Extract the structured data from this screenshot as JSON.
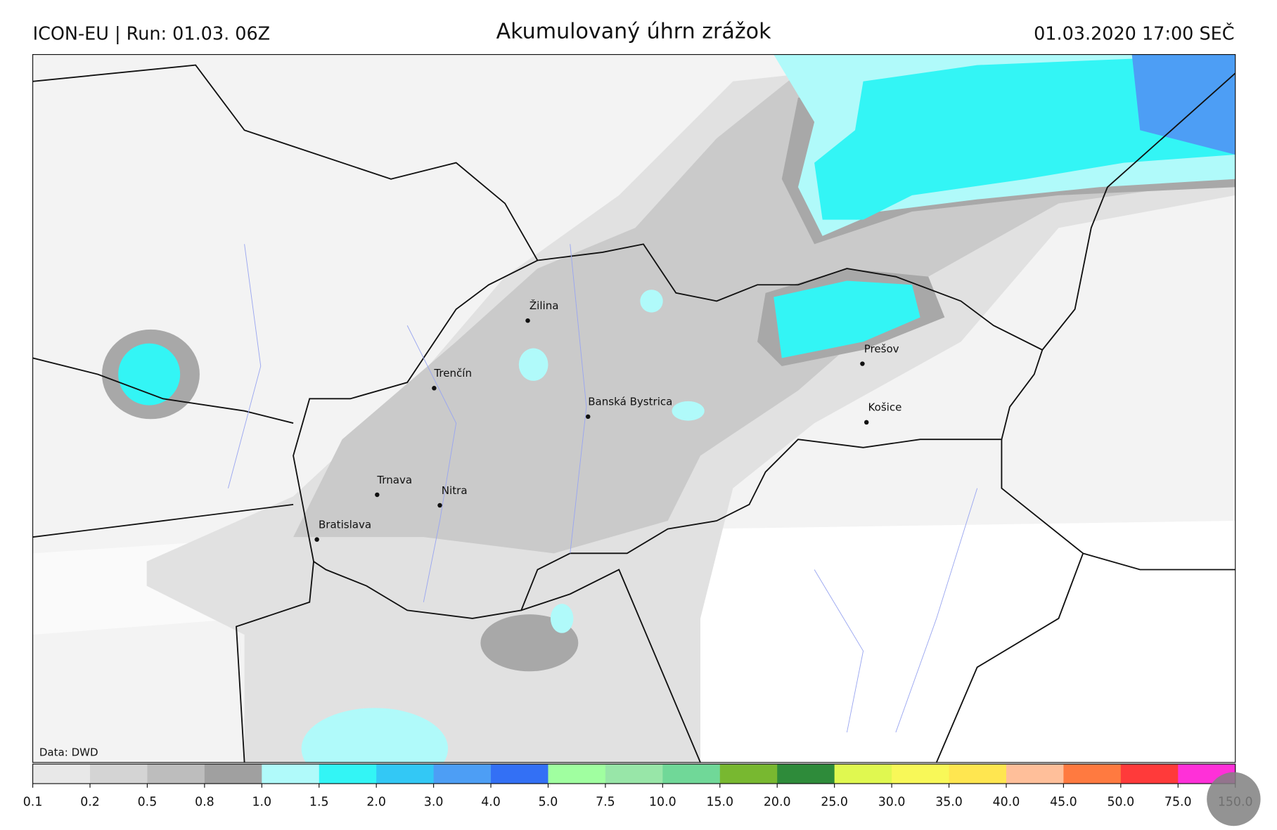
{
  "header": {
    "left": "ICON-EU | Run: 01.03. 06Z",
    "title": "Akumulovaný úhrn zrážok",
    "right": "01.03.2020 17:00 SEČ"
  },
  "map": {
    "cities": [
      {
        "name": "Žilina",
        "dx": 0,
        "dy": 0
      },
      {
        "name": "Trenčín"
      },
      {
        "name": "Banská Bystrica"
      },
      {
        "name": "Prešov"
      },
      {
        "name": "Košice"
      },
      {
        "name": "Trnava"
      },
      {
        "name": "Nitra"
      },
      {
        "name": "Bratislava"
      }
    ],
    "credit": "Data: DWD"
  },
  "colorbar": {
    "colors": [
      "#e8e8e8",
      "#d4d4d4",
      "#bdbdbd",
      "#a0a0a0",
      "#b0fafa",
      "#33f5f5",
      "#33c8f5",
      "#4d9ef5",
      "#3370f5",
      "#a0ffa0",
      "#98e6a8",
      "#70d898",
      "#78b830",
      "#2e8b3a",
      "#e0f850",
      "#f8f858",
      "#ffe650",
      "#ffbf9a",
      "#ff7a40",
      "#ff3a3a",
      "#ff30d8"
    ],
    "ticks": [
      0.1,
      0.2,
      0.5,
      0.8,
      {
        "value": 1,
        "label": "1.0"
      },
      1.5,
      {
        "value": 2,
        "label": "2.0"
      },
      {
        "value": 3,
        "label": "3.0"
      },
      {
        "value": 4,
        "label": "4.0"
      },
      {
        "value": 5,
        "label": "5.0"
      },
      7.5,
      {
        "value": 10,
        "label": "10.0"
      },
      {
        "value": 15,
        "label": "15.0"
      },
      {
        "value": 20,
        "label": "20.0"
      },
      {
        "value": 25,
        "label": "25.0"
      },
      {
        "value": 30,
        "label": "30.0"
      },
      {
        "value": 35,
        "label": "35.0"
      },
      {
        "value": 40,
        "label": "40.0"
      },
      {
        "value": 45,
        "label": "45.0"
      },
      {
        "value": 50,
        "label": "50.0"
      },
      {
        "value": 75,
        "label": "75.0"
      },
      {
        "value": 150,
        "label": "150.0"
      }
    ]
  }
}
